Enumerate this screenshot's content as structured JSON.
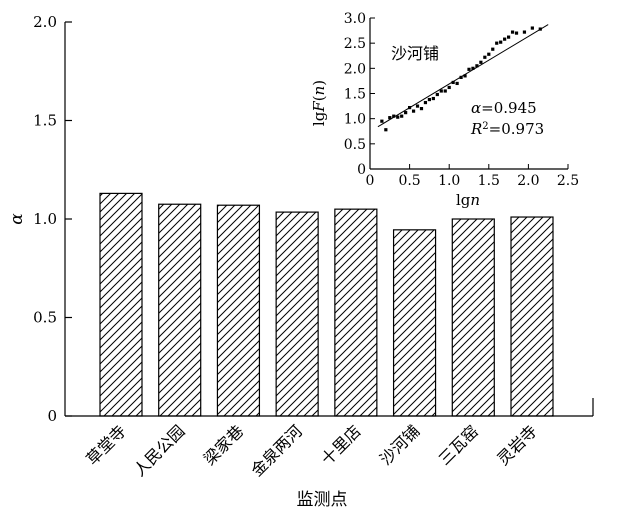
{
  "chart_data": [
    {
      "type": "bar",
      "ylabel": "α",
      "xlabel": "监测点",
      "categories": [
        "草堂寺",
        "人民公园",
        "梁家巷",
        "金泉两河",
        "十里店",
        "沙河铺",
        "三瓦窑",
        "灵岩寺"
      ],
      "values": [
        1.13,
        1.075,
        1.07,
        1.035,
        1.05,
        0.945,
        1.0,
        1.01
      ],
      "ylim": [
        0,
        2.0
      ],
      "yticks": [
        "0",
        "0.5",
        "1.0",
        "1.5",
        "2.0"
      ],
      "bar_fill": "hatched",
      "colors": {
        "stroke": "#000000",
        "fill": "#ffffff"
      }
    },
    {
      "type": "scatter",
      "title": "沙河铺",
      "xlabel": "lgn",
      "ylabel": "lgF(n)",
      "xlim": [
        0,
        2.5
      ],
      "ylim": [
        0,
        3.0
      ],
      "xticks": [
        "0",
        "0.5",
        "1.0",
        "1.5",
        "2.0",
        "2.5"
      ],
      "yticks": [
        "0",
        "0.5",
        "1.0",
        "1.5",
        "2.0",
        "2.5",
        "3.0"
      ],
      "alpha_label": "α=0.945",
      "r2_label": "R2=0.973",
      "alpha_value": 0.945,
      "r2_value": 0.973,
      "fit_line": {
        "x": [
          0.1,
          2.25
        ],
        "y": [
          0.84,
          2.87
        ]
      },
      "points": [
        [
          0.15,
          0.95
        ],
        [
          0.2,
          0.78
        ],
        [
          0.25,
          1.02
        ],
        [
          0.3,
          1.05
        ],
        [
          0.35,
          1.03
        ],
        [
          0.4,
          1.05
        ],
        [
          0.45,
          1.12
        ],
        [
          0.5,
          1.22
        ],
        [
          0.55,
          1.15
        ],
        [
          0.6,
          1.25
        ],
        [
          0.65,
          1.2
        ],
        [
          0.7,
          1.32
        ],
        [
          0.75,
          1.38
        ],
        [
          0.8,
          1.4
        ],
        [
          0.85,
          1.48
        ],
        [
          0.9,
          1.55
        ],
        [
          0.95,
          1.55
        ],
        [
          1.0,
          1.62
        ],
        [
          1.05,
          1.72
        ],
        [
          1.1,
          1.7
        ],
        [
          1.15,
          1.82
        ],
        [
          1.2,
          1.85
        ],
        [
          1.25,
          1.98
        ],
        [
          1.3,
          2.0
        ],
        [
          1.35,
          2.05
        ],
        [
          1.4,
          2.12
        ],
        [
          1.45,
          2.22
        ],
        [
          1.5,
          2.28
        ],
        [
          1.55,
          2.38
        ],
        [
          1.6,
          2.5
        ],
        [
          1.65,
          2.52
        ],
        [
          1.7,
          2.58
        ],
        [
          1.75,
          2.62
        ],
        [
          1.8,
          2.72
        ],
        [
          1.85,
          2.7
        ],
        [
          1.95,
          2.72
        ],
        [
          2.05,
          2.8
        ],
        [
          2.15,
          2.78
        ]
      ]
    }
  ]
}
